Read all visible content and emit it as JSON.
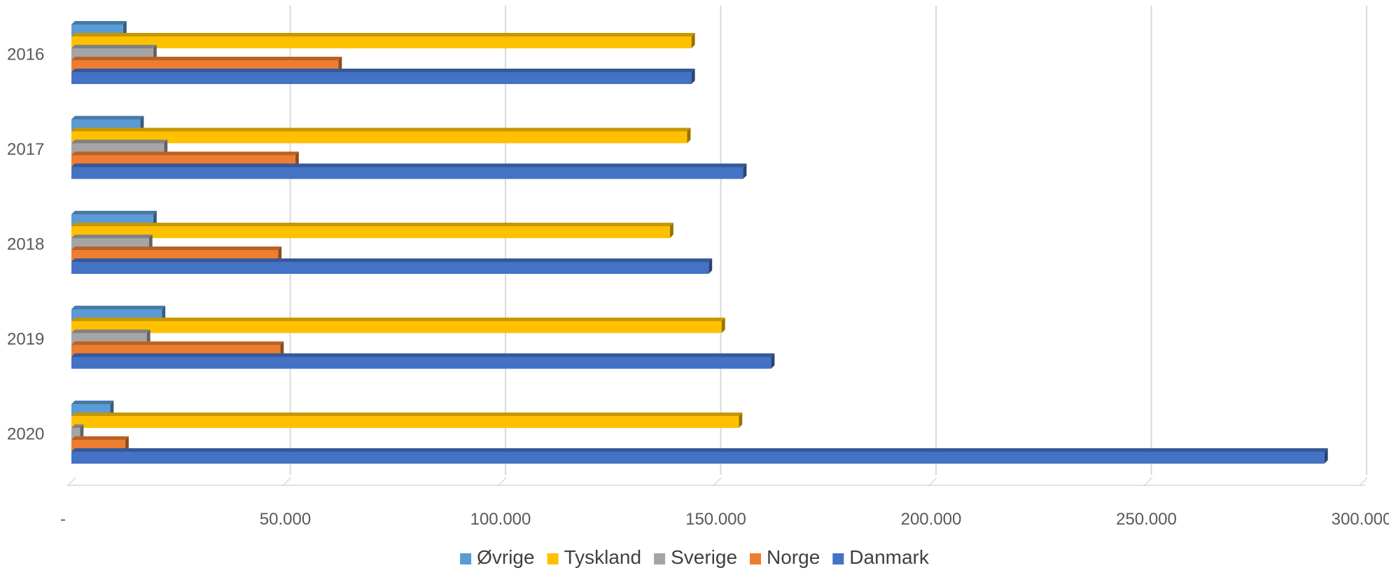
{
  "chart_data": {
    "type": "bar",
    "orientation": "horizontal",
    "style": "3d-clustered",
    "title": "",
    "xlabel": "",
    "ylabel": "",
    "categories": [
      "2016",
      "2017",
      "2018",
      "2019",
      "2020"
    ],
    "xlim": [
      0,
      300000
    ],
    "x_ticks": [
      {
        "value": 0,
        "label": "-"
      },
      {
        "value": 50000,
        "label": "50.000"
      },
      {
        "value": 100000,
        "label": "100.000"
      },
      {
        "value": 150000,
        "label": "150.000"
      },
      {
        "value": 200000,
        "label": "200.000"
      },
      {
        "value": 250000,
        "label": "250.000"
      },
      {
        "value": 300000,
        "label": "300.000"
      }
    ],
    "grid": true,
    "legend_position": "bottom",
    "series": [
      {
        "name": "Øvrige",
        "color": "#5B9BD5",
        "values": [
          12000,
          16000,
          19000,
          21000,
          9000
        ]
      },
      {
        "name": "Tyskland",
        "color": "#FFC000",
        "values": [
          144000,
          143000,
          139000,
          151000,
          155000
        ]
      },
      {
        "name": "Sverige",
        "color": "#A5A5A5",
        "values": [
          19000,
          21500,
          18000,
          17500,
          2000
        ]
      },
      {
        "name": "Norge",
        "color": "#ED7D31",
        "values": [
          62000,
          52000,
          48000,
          48500,
          12500
        ]
      },
      {
        "name": "Danmark",
        "color": "#4472C4",
        "values": [
          144000,
          156000,
          148000,
          162500,
          291000
        ]
      }
    ]
  }
}
